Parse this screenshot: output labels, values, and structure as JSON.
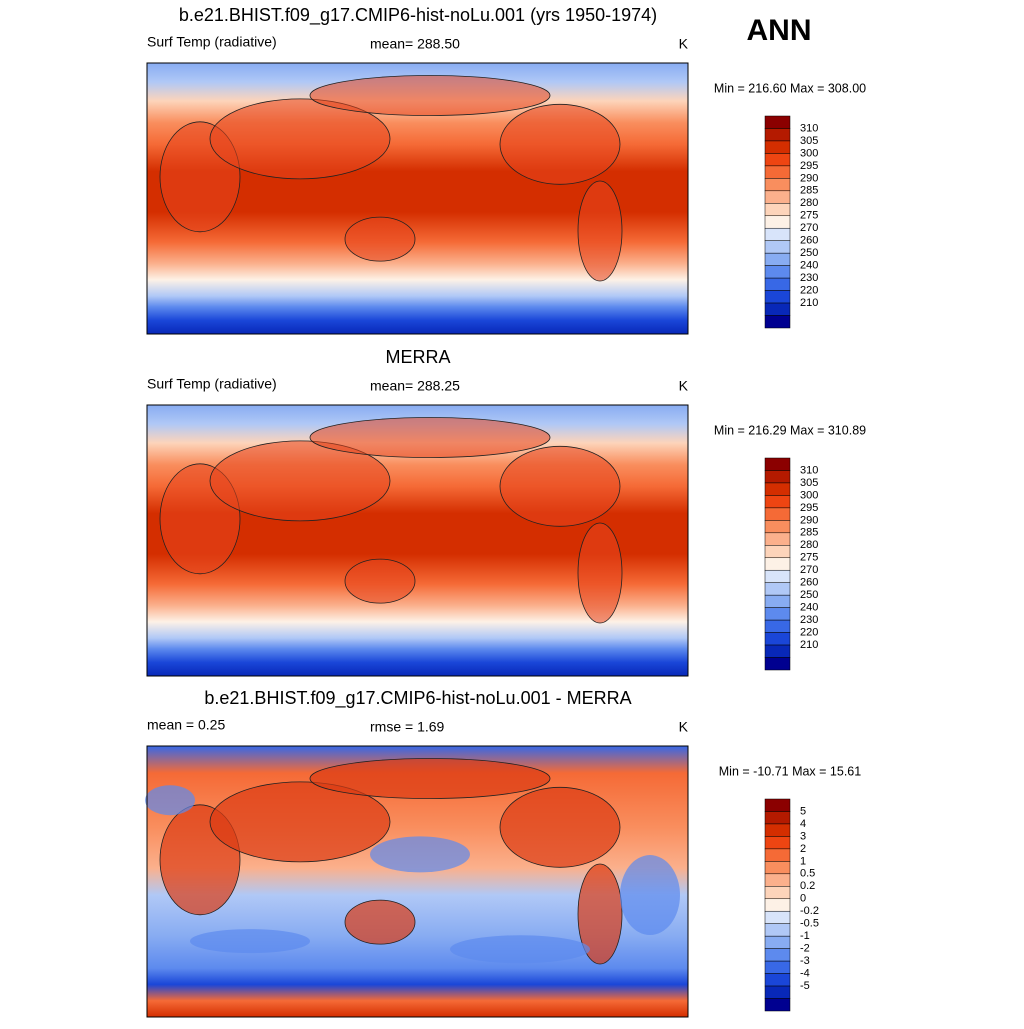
{
  "season": "ANN",
  "panels": [
    {
      "title": "b.e21.BHIST.f09_g17.CMIP6-hist-noLu.001 (yrs 1950-1974)",
      "left_label": "Surf Temp (radiative)",
      "center_label": "mean= 288.50",
      "units": "K",
      "minmax": "Min = 216.60 Max = 308.00",
      "colorbar": {
        "labels": [
          "310",
          "305",
          "300",
          "295",
          "290",
          "285",
          "280",
          "275",
          "270",
          "260",
          "250",
          "240",
          "230",
          "220",
          "210"
        ],
        "colors": [
          "#8b0000",
          "#b41a00",
          "#d42e00",
          "#ee4512",
          "#f56a36",
          "#f98e5e",
          "#fbb08c",
          "#fdd4ba",
          "#fdf1e6",
          "#d8e4fa",
          "#b0c8f6",
          "#88acf2",
          "#5d8aee",
          "#3868e6",
          "#1a46d8",
          "#0828b8",
          "#000090"
        ]
      }
    },
    {
      "title": "MERRA",
      "left_label": "Surf Temp (radiative)",
      "center_label": "mean= 288.25",
      "units": "K",
      "minmax": "Min = 216.29 Max = 310.89",
      "colorbar": {
        "labels": [
          "310",
          "305",
          "300",
          "295",
          "290",
          "285",
          "280",
          "275",
          "270",
          "260",
          "250",
          "240",
          "230",
          "220",
          "210"
        ],
        "colors": [
          "#8b0000",
          "#b41a00",
          "#d42e00",
          "#ee4512",
          "#f56a36",
          "#f98e5e",
          "#fbb08c",
          "#fdd4ba",
          "#fdf1e6",
          "#d8e4fa",
          "#b0c8f6",
          "#88acf2",
          "#5d8aee",
          "#3868e6",
          "#1a46d8",
          "#0828b8",
          "#000090"
        ]
      }
    },
    {
      "title": "b.e21.BHIST.f09_g17.CMIP6-hist-noLu.001 - MERRA",
      "left_label": "mean =   0.25",
      "center_label": "rmse =   1.69",
      "units": "K",
      "minmax": "Min = -10.71 Max =  15.61",
      "colorbar": {
        "labels": [
          "5",
          "4",
          "3",
          "2",
          "1",
          "0.5",
          "0.2",
          "0",
          "-0.2",
          "-0.5",
          "-1",
          "-2",
          "-3",
          "-4",
          "-5"
        ],
        "colors": [
          "#8b0000",
          "#b41a00",
          "#d42e00",
          "#ee4512",
          "#f56a36",
          "#f98e5e",
          "#fbb08c",
          "#fdd4ba",
          "#fdf1e6",
          "#d8e4fa",
          "#b0c8f6",
          "#88acf2",
          "#5d8aee",
          "#3868e6",
          "#1a46d8",
          "#0828b8",
          "#000090"
        ]
      }
    }
  ]
}
